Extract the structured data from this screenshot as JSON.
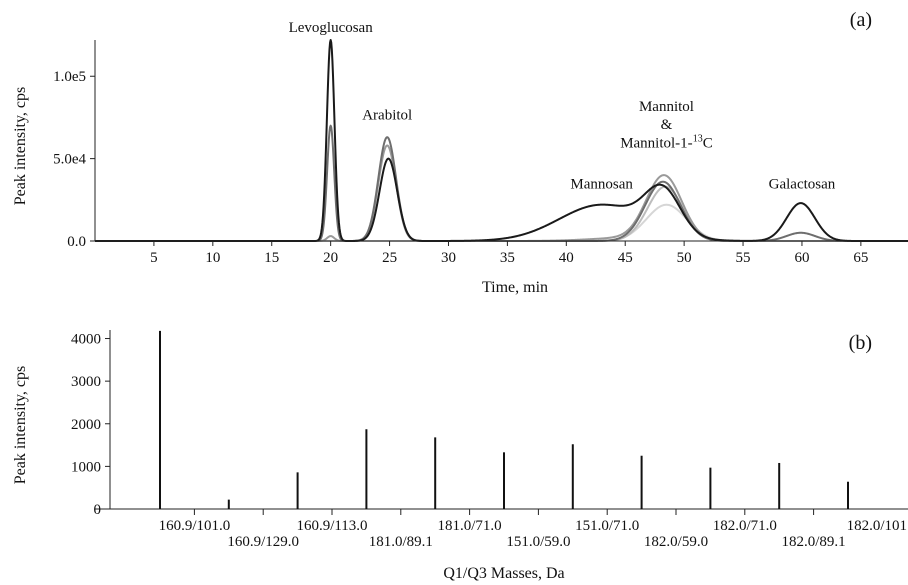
{
  "chart_data": [
    {
      "type": "line",
      "panel_label": "(a)",
      "xlabel": "Time, min",
      "ylabel": "Peak intensity, cps",
      "xlim": [
        0,
        69
      ],
      "ylim": [
        0,
        122000
      ],
      "x_ticks": [
        5,
        10,
        15,
        20,
        25,
        30,
        35,
        40,
        45,
        50,
        55,
        60,
        65
      ],
      "y_ticks": [
        {
          "value": 0,
          "label": "0.0"
        },
        {
          "value": 50000,
          "label": "5.0e4"
        },
        {
          "value": 100000,
          "label": "1.0e5"
        }
      ],
      "annotations": [
        {
          "text": "Levoglucosan",
          "x": 20,
          "y": 122000
        },
        {
          "text": "Arabitol",
          "x": 24.8,
          "y": 69000
        },
        {
          "text": "Mannitol",
          "x": 48.5,
          "y": 74000
        },
        {
          "text": "&",
          "x": 48.5,
          "y": 63000
        },
        {
          "text": "Mannitol-1-",
          "sup": "13",
          "suffix": "C",
          "x": 48.5,
          "y": 52000
        },
        {
          "text": "Mannosan",
          "x": 43,
          "y": 27000
        },
        {
          "text": "Galactosan",
          "x": 60,
          "y": 27000
        }
      ],
      "series": [
        {
          "color": "#1a1a1a",
          "peaks": [
            {
              "center": 20,
              "height": 122000,
              "width": 0.32
            },
            {
              "center": 24.9,
              "height": 50000,
              "width": 0.75
            },
            {
              "center": 43,
              "height": 22000,
              "width": 3.6
            },
            {
              "center": 48.2,
              "height": 26000,
              "width": 1.5
            },
            {
              "center": 59.9,
              "height": 23000,
              "width": 1.2
            }
          ]
        },
        {
          "color": "#6e6e6e",
          "peaks": [
            {
              "center": 20,
              "height": 70000,
              "width": 0.3
            },
            {
              "center": 24.8,
              "height": 63000,
              "width": 0.75
            },
            {
              "center": 48.2,
              "height": 36000,
              "width": 1.5
            },
            {
              "center": 59.9,
              "height": 5000,
              "width": 1.2
            }
          ]
        },
        {
          "color": "#9a9a9a",
          "peaks": [
            {
              "center": 20,
              "height": 3000,
              "width": 0.3
            },
            {
              "center": 24.8,
              "height": 58000,
              "width": 0.75
            },
            {
              "center": 45,
              "height": 1800,
              "width": 3
            },
            {
              "center": 48.3,
              "height": 39000,
              "width": 1.5
            }
          ]
        },
        {
          "color": "#bdbdbd",
          "peaks": [
            {
              "center": 48.4,
              "height": 33000,
              "width": 1.5
            }
          ]
        },
        {
          "color": "#d6d6d6",
          "peaks": [
            {
              "center": 48.5,
              "height": 22000,
              "width": 1.7
            }
          ]
        }
      ]
    },
    {
      "type": "bar",
      "panel_label": "(b)",
      "xlabel": "Q1/Q3 Masses, Da",
      "ylabel": "Peak intensity, cps",
      "ylim": [
        0,
        4200
      ],
      "y_ticks": [
        0,
        1000,
        2000,
        3000,
        4000
      ],
      "categories": [
        "160.9/101.0",
        "160.9/129.0",
        "160.9/113.0",
        "181.0/89.1",
        "181.0/71.0",
        "151.0/59.0",
        "151.0/71.0",
        "182.0/59.0",
        "182.0/71.0",
        "182.0/89.1",
        "182.0/101.0"
      ],
      "values": [
        4180,
        220,
        860,
        1870,
        1680,
        1330,
        1520,
        1250,
        970,
        1080,
        640
      ]
    }
  ]
}
